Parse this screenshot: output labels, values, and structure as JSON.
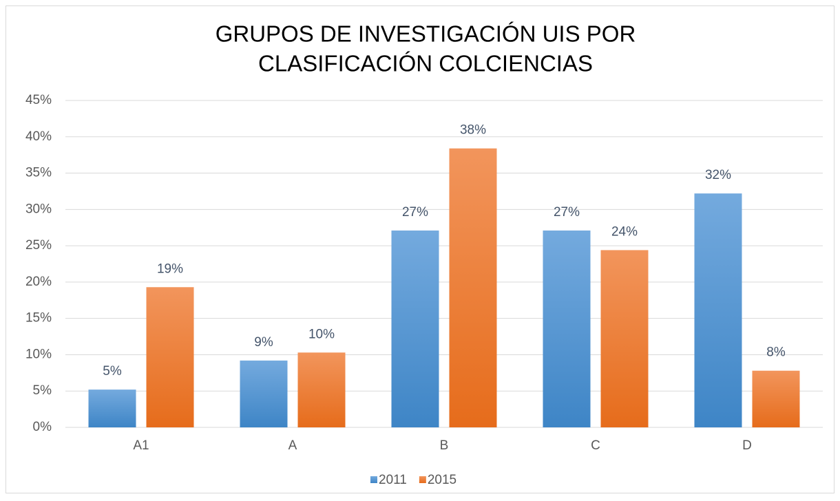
{
  "chart_data": {
    "type": "bar",
    "title": [
      "GRUPOS DE INVESTIGACIÓN UIS POR",
      "CLASIFICACIÓN COLCIENCIAS"
    ],
    "categories": [
      "A1",
      "A",
      "B",
      "C",
      "D"
    ],
    "series": [
      {
        "name": "2011",
        "color": [
          "#74aade",
          "#3e85c6"
        ],
        "values": [
          5.2,
          9.2,
          27.1,
          27.1,
          32.2
        ],
        "value_labels": [
          "5%",
          "9%",
          "27%",
          "27%",
          "32%"
        ]
      },
      {
        "name": "2015",
        "color": [
          "#f2955c",
          "#e66c1b"
        ],
        "values": [
          19.3,
          10.3,
          38.4,
          24.4,
          7.8
        ],
        "value_labels": [
          "19%",
          "10%",
          "38%",
          "24%",
          "8%"
        ]
      }
    ],
    "ylim": [
      0,
      45
    ],
    "yticks": [
      {
        "value": 0,
        "label": "0%"
      },
      {
        "value": 5,
        "label": "5%"
      },
      {
        "value": 10,
        "label": "10%"
      },
      {
        "value": 15,
        "label": "15%"
      },
      {
        "value": 20,
        "label": "20%"
      },
      {
        "value": 25,
        "label": "25%"
      },
      {
        "value": 30,
        "label": "30%"
      },
      {
        "value": 35,
        "label": "35%"
      },
      {
        "value": 40,
        "label": "40%"
      },
      {
        "value": 45,
        "label": "45%"
      }
    ],
    "grid": true,
    "legend": "bottom"
  }
}
